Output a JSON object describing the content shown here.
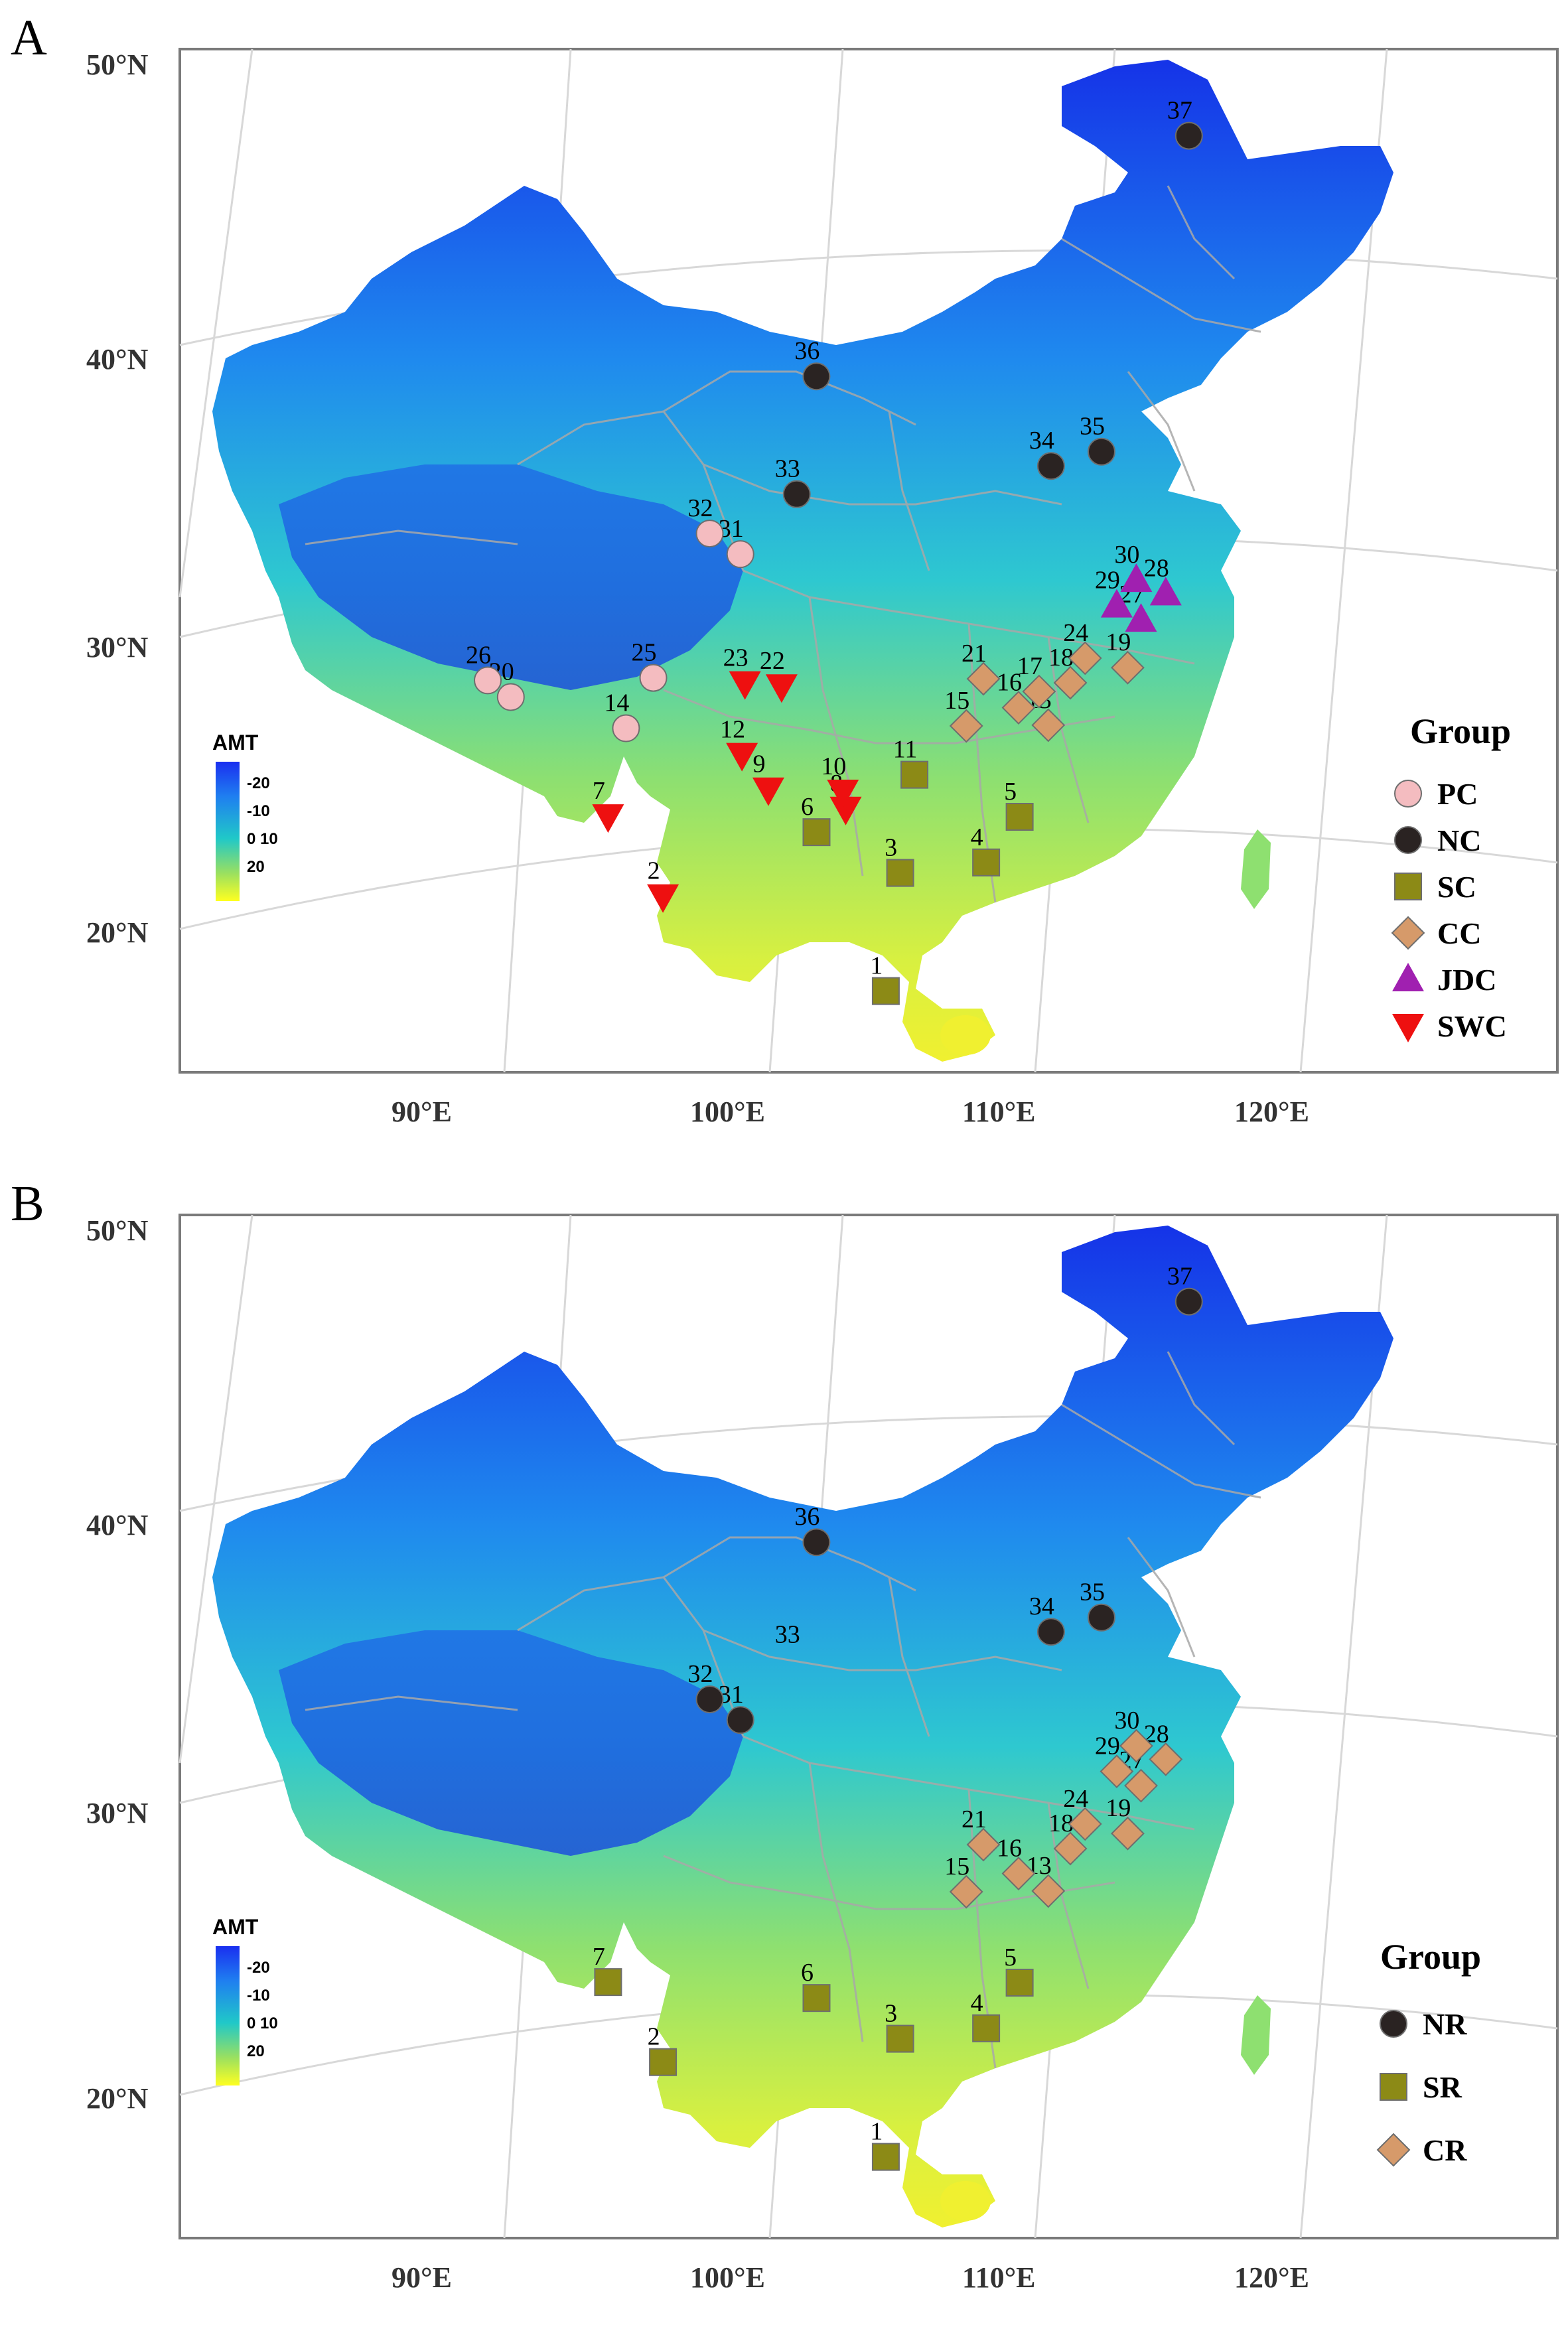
{
  "figure": {
    "panels": [
      {
        "id": "A",
        "label": "A",
        "lat_labels": [
          "50°N",
          "40°N",
          "30°N",
          "20°N"
        ],
        "lon_labels": [
          "90°E",
          "100°E",
          "110°E",
          "120°E"
        ],
        "colorbar": {
          "title": "AMT",
          "ticks": [
            "-20",
            "-10",
            "0 10",
            "20"
          ],
          "colors": [
            "#1a2ff0",
            "#1f7ff0",
            "#20c8c8",
            "#9ae060",
            "#ffff20"
          ]
        },
        "legend": {
          "title": "Group",
          "entries": [
            {
              "label": "PC",
              "shape": "circle",
              "color": "#f4bcc0"
            },
            {
              "label": "NC",
              "shape": "circle",
              "color": "#2a2322"
            },
            {
              "label": "SC",
              "shape": "square",
              "color": "#8c8a16"
            },
            {
              "label": "CC",
              "shape": "diamond",
              "color": "#d69a6a"
            },
            {
              "label": "JDC",
              "shape": "triangle-up",
              "color": "#a020b0"
            },
            {
              "label": "SWC",
              "shape": "triangle-down",
              "color": "#ee1010"
            }
          ]
        },
        "sites": [
          {
            "id": "1",
            "group": "SC",
            "lon": 109.0,
            "lat": 18.6
          },
          {
            "id": "2",
            "group": "SWC",
            "lon": 100.8,
            "lat": 21.9
          },
          {
            "id": "3",
            "group": "SC",
            "lon": 109.6,
            "lat": 22.7
          },
          {
            "id": "4",
            "group": "SC",
            "lon": 112.8,
            "lat": 22.9
          },
          {
            "id": "5",
            "group": "SC",
            "lon": 114.1,
            "lat": 24.4
          },
          {
            "id": "6",
            "group": "SC",
            "lon": 106.5,
            "lat": 24.2
          },
          {
            "id": "7",
            "group": "SWC",
            "lon": 98.7,
            "lat": 24.6
          },
          {
            "id": "8",
            "group": "SWC",
            "lon": 107.6,
            "lat": 25.0
          },
          {
            "id": "9",
            "group": "SWC",
            "lon": 104.7,
            "lat": 25.7
          },
          {
            "id": "10",
            "group": "SWC",
            "lon": 107.5,
            "lat": 25.6
          },
          {
            "id": "11",
            "group": "SC",
            "lon": 110.2,
            "lat": 26.1
          },
          {
            "id": "12",
            "group": "SWC",
            "lon": 103.7,
            "lat": 26.9
          },
          {
            "id": "13",
            "group": "CC",
            "lon": 115.3,
            "lat": 27.5
          },
          {
            "id": "14",
            "group": "PC",
            "lon": 99.3,
            "lat": 27.7
          },
          {
            "id": "15",
            "group": "CC",
            "lon": 112.2,
            "lat": 27.7
          },
          {
            "id": "16",
            "group": "CC",
            "lon": 114.2,
            "lat": 28.2
          },
          {
            "id": "17",
            "group": "CC",
            "lon": 115.0,
            "lat": 28.7
          },
          {
            "id": "18",
            "group": "CC",
            "lon": 116.2,
            "lat": 28.9
          },
          {
            "id": "19",
            "group": "CC",
            "lon": 118.4,
            "lat": 29.2
          },
          {
            "id": "20",
            "group": "PC",
            "lon": 94.9,
            "lat": 28.5
          },
          {
            "id": "21",
            "group": "CC",
            "lon": 112.9,
            "lat": 29.3
          },
          {
            "id": "22",
            "group": "SWC",
            "lon": 105.2,
            "lat": 29.3
          },
          {
            "id": "23",
            "group": "SWC",
            "lon": 103.8,
            "lat": 29.4
          },
          {
            "id": "24",
            "group": "CC",
            "lon": 116.8,
            "lat": 29.7
          },
          {
            "id": "25",
            "group": "PC",
            "lon": 100.3,
            "lat": 29.5
          },
          {
            "id": "26",
            "group": "PC",
            "lon": 94.0,
            "lat": 29.0
          },
          {
            "id": "27",
            "group": "JDC",
            "lon": 119.0,
            "lat": 30.8
          },
          {
            "id": "28",
            "group": "JDC",
            "lon": 120.0,
            "lat": 31.6
          },
          {
            "id": "29",
            "group": "JDC",
            "lon": 118.1,
            "lat": 31.4
          },
          {
            "id": "30",
            "group": "JDC",
            "lon": 118.9,
            "lat": 32.2
          },
          {
            "id": "31",
            "group": "PC",
            "lon": 103.6,
            "lat": 33.9
          },
          {
            "id": "32",
            "group": "PC",
            "lon": 102.4,
            "lat": 34.6
          },
          {
            "id": "33",
            "group": "NC",
            "lon": 105.8,
            "lat": 36.0
          },
          {
            "id": "34",
            "group": "NC",
            "lon": 115.8,
            "lat": 36.5
          },
          {
            "id": "35",
            "group": "NC",
            "lon": 117.8,
            "lat": 36.8
          },
          {
            "id": "36",
            "group": "NC",
            "lon": 106.6,
            "lat": 40.1
          },
          {
            "id": "37",
            "group": "NC",
            "lon": 122.0,
            "lat": 47.3
          }
        ]
      },
      {
        "id": "B",
        "label": "B",
        "lat_labels": [
          "50°N",
          "40°N",
          "30°N",
          "20°N"
        ],
        "lon_labels": [
          "90°E",
          "100°E",
          "110°E",
          "120°E"
        ],
        "colorbar": {
          "title": "AMT",
          "ticks": [
            "-20",
            "-10",
            "0 10",
            "20"
          ],
          "colors": [
            "#1a2ff0",
            "#1f7ff0",
            "#20c8c8",
            "#9ae060",
            "#ffff20"
          ]
        },
        "legend": {
          "title": "Group",
          "entries": [
            {
              "label": "NR",
              "shape": "circle",
              "color": "#2a2322"
            },
            {
              "label": "SR",
              "shape": "square",
              "color": "#8c8a16"
            },
            {
              "label": "CR",
              "shape": "diamond",
              "color": "#d69a6a"
            }
          ]
        },
        "sites": [
          {
            "id": "1",
            "group": "SR",
            "lon": 109.0,
            "lat": 18.6
          },
          {
            "id": "2",
            "group": "SR",
            "lon": 100.8,
            "lat": 21.9
          },
          {
            "id": "3",
            "group": "SR",
            "lon": 109.6,
            "lat": 22.7
          },
          {
            "id": "4",
            "group": "SR",
            "lon": 112.8,
            "lat": 22.9
          },
          {
            "id": "5",
            "group": "SR",
            "lon": 114.1,
            "lat": 24.4
          },
          {
            "id": "6",
            "group": "SR",
            "lon": 106.5,
            "lat": 24.2
          },
          {
            "id": "7",
            "group": "SR",
            "lon": 98.7,
            "lat": 24.6
          },
          {
            "id": "13",
            "group": "CR",
            "lon": 115.3,
            "lat": 27.5
          },
          {
            "id": "15",
            "group": "CR",
            "lon": 112.2,
            "lat": 27.7
          },
          {
            "id": "16",
            "group": "CR",
            "lon": 114.2,
            "lat": 28.2
          },
          {
            "id": "18",
            "group": "CR",
            "lon": 116.2,
            "lat": 28.9
          },
          {
            "id": "19",
            "group": "CR",
            "lon": 118.4,
            "lat": 29.2
          },
          {
            "id": "21",
            "group": "CR",
            "lon": 112.9,
            "lat": 29.3
          },
          {
            "id": "24",
            "group": "CR",
            "lon": 116.8,
            "lat": 29.7
          },
          {
            "id": "27",
            "group": "CR",
            "lon": 119.0,
            "lat": 30.8
          },
          {
            "id": "28",
            "group": "CR",
            "lon": 120.0,
            "lat": 31.6
          },
          {
            "id": "29",
            "group": "CR",
            "lon": 118.1,
            "lat": 31.4
          },
          {
            "id": "30",
            "group": "CR",
            "lon": 118.9,
            "lat": 32.2
          },
          {
            "id": "31",
            "group": "NR",
            "lon": 103.6,
            "lat": 33.9
          },
          {
            "id": "32",
            "group": "NR",
            "lon": 102.4,
            "lat": 34.6
          },
          {
            "id": "33",
            "group": "none",
            "lon": 105.8,
            "lat": 36.0
          },
          {
            "id": "34",
            "group": "NR",
            "lon": 115.8,
            "lat": 36.5
          },
          {
            "id": "35",
            "group": "NR",
            "lon": 117.8,
            "lat": 36.8
          },
          {
            "id": "36",
            "group": "NR",
            "lon": 106.6,
            "lat": 40.1
          },
          {
            "id": "37",
            "group": "NR",
            "lon": 122.0,
            "lat": 47.3
          }
        ]
      }
    ]
  }
}
